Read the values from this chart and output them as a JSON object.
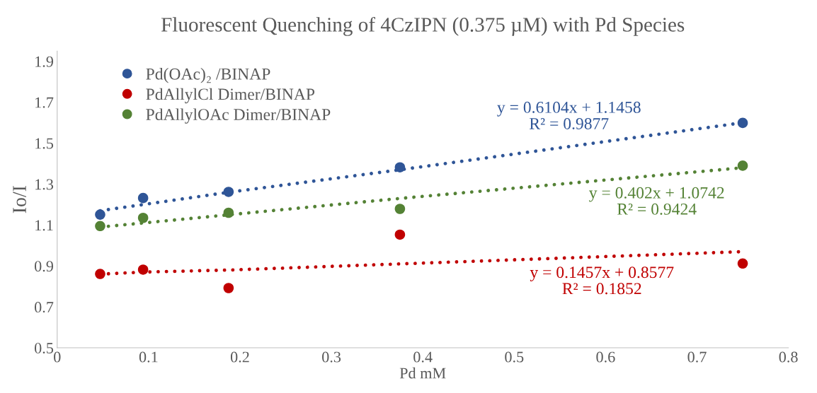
{
  "chart_data": {
    "type": "scatter",
    "title": "Fluorescent Quenching of 4CzIPN (0.375 µM) with Pd Species",
    "xlabel": "Pd mM",
    "ylabel": "Io/I",
    "x": [
      0.047,
      0.094,
      0.1875,
      0.375,
      0.75
    ],
    "series": [
      {
        "name": "Pd(OAc)₂ /BINAP",
        "color": "#2f5597",
        "values": [
          1.151,
          1.232,
          1.262,
          1.382,
          1.599
        ]
      },
      {
        "name": "PdAllylCl Dimer/BINAP",
        "color": "#c00000",
        "values": [
          0.861,
          0.882,
          0.792,
          1.053,
          0.912
        ]
      },
      {
        "name": "PdAllylOAc Dimer/BINAP",
        "color": "#548235",
        "values": [
          1.095,
          1.135,
          1.16,
          1.179,
          1.39
        ]
      },
      {
        "type": "line",
        "color": "#2f5597",
        "line_style": "dotted",
        "marker": "none",
        "values": [
          1.17,
          1.2,
          1.26,
          1.37,
          1.6
        ]
      },
      {
        "type": "line",
        "color": "#c00000",
        "line_style": "dotted",
        "marker": "none",
        "values": [
          0.86,
          0.87,
          0.88,
          0.91,
          0.97
        ]
      },
      {
        "type": "line",
        "color": "#548235",
        "line_style": "dotted",
        "marker": "none",
        "values": [
          1.09,
          1.11,
          1.15,
          1.23,
          1.38
        ]
      }
    ],
    "annotations": [
      "y = 0.6104x + 1.1458\nR² = 0.9877",
      "y = 0.1457x + 0.8577\nR² = 0.1852",
      "y = 0.402x + 1.0742\nR² = 0.9424"
    ],
    "xlim": [
      0,
      0.8
    ],
    "xticks": [
      0,
      0.1,
      0.2,
      0.3,
      0.4,
      0.5,
      0.6,
      0.7,
      0.8
    ],
    "ylim": [
      0.5,
      1.95
    ],
    "yticks": [
      0.5,
      0.7,
      0.9,
      1.1,
      1.3,
      1.5,
      1.7,
      1.9
    ],
    "marker": "circle",
    "grid": false,
    "legend": "top left"
  }
}
